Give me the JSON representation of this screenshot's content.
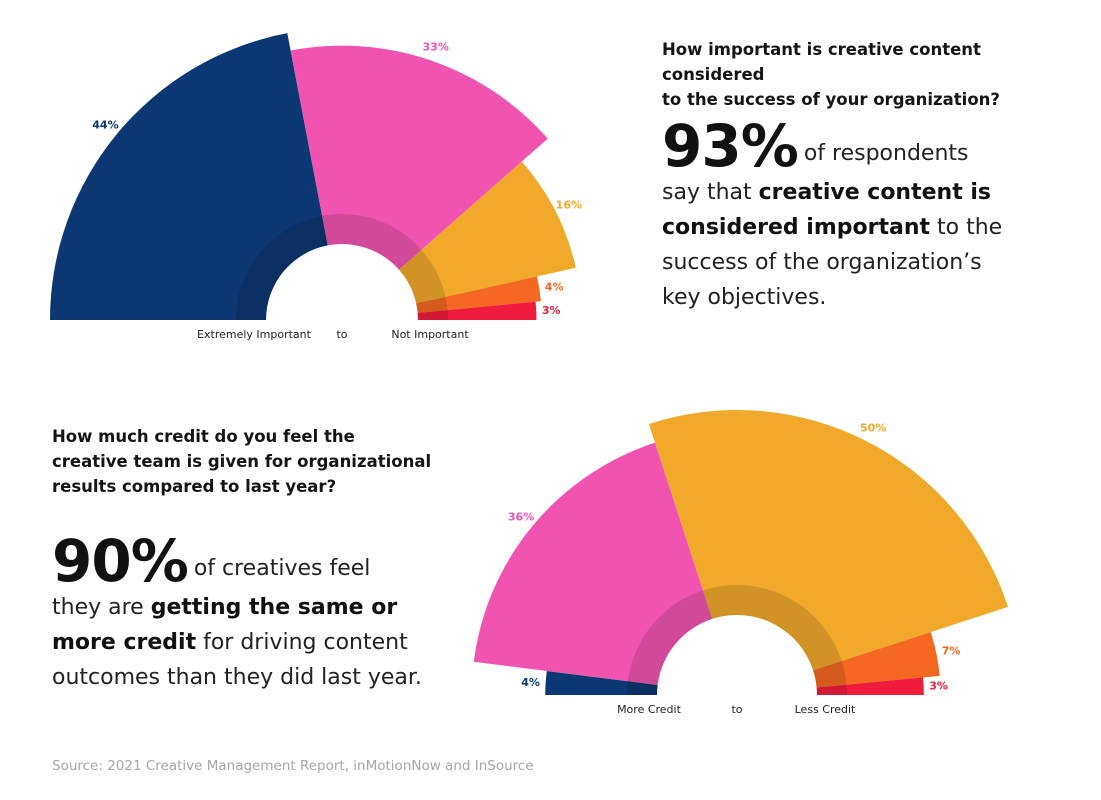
{
  "chart_data": [
    {
      "type": "pie",
      "subtype": "semicircle",
      "title": "How important is creative content considered to the success of your organization?",
      "categories": [
        "Extremely Important",
        "",
        "",
        "",
        "Not Important"
      ],
      "values": [
        44,
        33,
        16,
        4,
        3
      ],
      "value_labels": [
        "44%",
        "33%",
        "16%",
        "4%",
        "3%"
      ],
      "colors": [
        "#0b3772",
        "#f054b0",
        "#f0a92b",
        "#f56821",
        "#f01c3c"
      ],
      "axis_labels": {
        "left": "Extremely Important",
        "middle": "to",
        "right": "Not Important"
      }
    },
    {
      "type": "pie",
      "subtype": "semicircle",
      "title": "How much credit do you feel the creative team is given for organizational results compared to last year?",
      "categories": [
        "More Credit",
        "",
        "",
        "",
        "Less Credit"
      ],
      "values": [
        4,
        36,
        50,
        7,
        3
      ],
      "value_labels": [
        "4%",
        "36%",
        "50%",
        "7%",
        "3%"
      ],
      "colors": [
        "#0b3772",
        "#f054b0",
        "#f0a92b",
        "#f56821",
        "#f01c3c"
      ],
      "axis_labels": {
        "left": "More Credit",
        "middle": "to",
        "right": "Less Credit"
      }
    }
  ],
  "top": {
    "question_line1": "How important is creative content considered",
    "question_line2": "to the success of your organization?",
    "big": "93%",
    "t1": "of respondents",
    "t2": "say that",
    "b1": "creative content is",
    "b2": "considered important",
    "t3": "to the",
    "t4": "success of the organization’s",
    "t5": "key objectives."
  },
  "bottom": {
    "question_line1": "How much credit do you feel the",
    "question_line2": "creative team is given for organizational",
    "question_line3": "results compared to last year?",
    "big": "90%",
    "t1": "of creatives feel",
    "t2": "they are",
    "b1": "getting the same or",
    "b2": "more credit",
    "t3": "for driving content",
    "t4": "outcomes than they did last year."
  },
  "source": "Source: 2021 Creative Management Report, inMotionNow and InSource"
}
